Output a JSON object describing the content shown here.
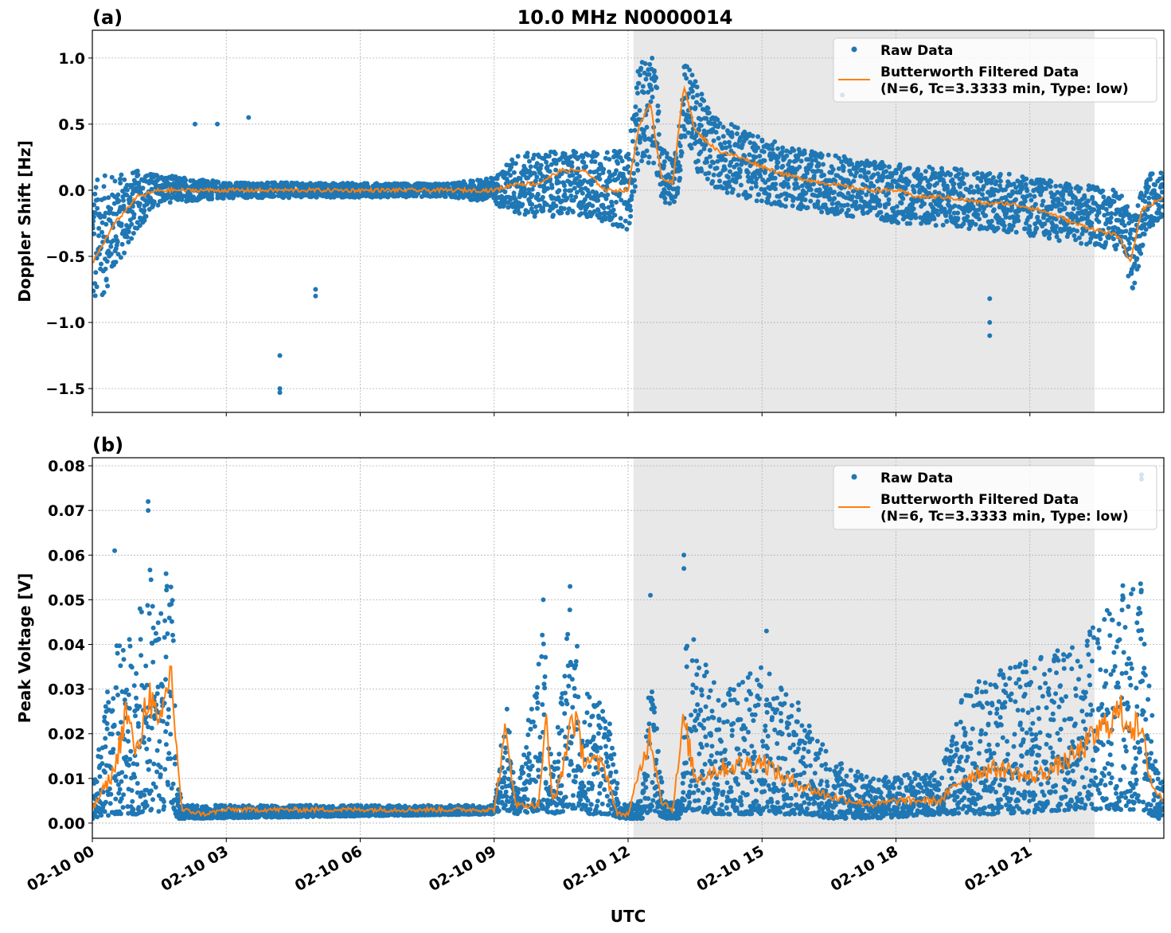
{
  "title": "10.0 MHz N0000014",
  "colors": {
    "raw": "#1f77b4",
    "filtered": "#ff7f0e",
    "shade": "#e8e8e8",
    "grid": "#b0b0b0"
  },
  "xaxis": {
    "label": "UTC",
    "range_hours": [
      0,
      24
    ],
    "ticks": [
      {
        "hour": 0,
        "label": "02-10 00"
      },
      {
        "hour": 3,
        "label": "02-10 03"
      },
      {
        "hour": 6,
        "label": "02-10 06"
      },
      {
        "hour": 9,
        "label": "02-10 09"
      },
      {
        "hour": 12,
        "label": "02-10 12"
      },
      {
        "hour": 15,
        "label": "02-10 15"
      },
      {
        "hour": 18,
        "label": "02-10 18"
      },
      {
        "hour": 21,
        "label": "02-10 21"
      }
    ]
  },
  "chart_data": [
    {
      "type": "scatter",
      "panel_label": "(a)",
      "ylabel": "Doppler Shift [Hz]",
      "ylim": [
        -1.68,
        1.21
      ],
      "yticks": [
        {
          "v": 1.0,
          "label": "1.0"
        },
        {
          "v": 0.5,
          "label": "0.5"
        },
        {
          "v": 0.0,
          "label": "0.0"
        },
        {
          "v": -0.5,
          "label": "−0.5"
        },
        {
          "v": -1.0,
          "label": "−1.0"
        },
        {
          "v": -1.5,
          "label": "−1.5"
        }
      ],
      "grid": true,
      "shaded_span_hours": [
        12.12,
        22.45
      ],
      "legend": {
        "placement": "top-right",
        "entries": [
          "Raw Data",
          "Butterworth Filtered Data",
          "(N=6, Tc=3.3333 min, Type: low)"
        ]
      },
      "raw_envelope": [
        [
          0,
          -0.95,
          0.1
        ],
        [
          1,
          -0.3,
          0.15
        ],
        [
          1.5,
          -0.1,
          0.12
        ],
        [
          3,
          -0.06,
          0.06
        ],
        [
          8,
          -0.05,
          0.05
        ],
        [
          9,
          -0.1,
          0.1
        ],
        [
          9.5,
          -0.2,
          0.28
        ],
        [
          11,
          -0.2,
          0.3
        ],
        [
          12,
          -0.3,
          0.3
        ],
        [
          12.25,
          0.2,
          1.0
        ],
        [
          12.6,
          0.2,
          1.0
        ],
        [
          12.75,
          -0.1,
          0.3
        ],
        [
          13.1,
          -0.1,
          0.3
        ],
        [
          13.25,
          0.4,
          1.05
        ],
        [
          13.6,
          0.1,
          0.75
        ],
        [
          14,
          0.0,
          0.55
        ],
        [
          15,
          -0.1,
          0.4
        ],
        [
          16,
          -0.15,
          0.3
        ],
        [
          18,
          -0.25,
          0.2
        ],
        [
          20,
          -0.3,
          0.15
        ],
        [
          22,
          -0.4,
          0.05
        ],
        [
          23,
          -0.45,
          0.0
        ],
        [
          23.3,
          -0.8,
          -0.2
        ],
        [
          23.6,
          -0.3,
          0.1
        ],
        [
          24,
          -0.2,
          0.2
        ]
      ],
      "raw_outliers": [
        [
          4.2,
          -1.25
        ],
        [
          4.2,
          -1.5
        ],
        [
          4.2,
          -1.53
        ],
        [
          5.0,
          -0.75
        ],
        [
          5.0,
          -0.8
        ],
        [
          20.1,
          -1.0
        ],
        [
          20.1,
          -1.1
        ],
        [
          20.1,
          -0.82
        ],
        [
          2.8,
          0.5
        ],
        [
          3.5,
          0.55
        ],
        [
          2.3,
          0.5
        ],
        [
          16.8,
          0.72
        ]
      ],
      "filtered": [
        [
          0,
          -0.55
        ],
        [
          0.5,
          -0.25
        ],
        [
          1,
          -0.05
        ],
        [
          1.5,
          0.0
        ],
        [
          3,
          0.0
        ],
        [
          9,
          0.0
        ],
        [
          9.5,
          0.05
        ],
        [
          10,
          0.05
        ],
        [
          10.5,
          0.15
        ],
        [
          11,
          0.15
        ],
        [
          11.5,
          0.0
        ],
        [
          12,
          0.0
        ],
        [
          12.25,
          0.5
        ],
        [
          12.5,
          0.65
        ],
        [
          12.75,
          0.1
        ],
        [
          13,
          0.05
        ],
        [
          13.25,
          0.8
        ],
        [
          13.5,
          0.45
        ],
        [
          14,
          0.3
        ],
        [
          14.5,
          0.25
        ],
        [
          15,
          0.18
        ],
        [
          15.5,
          0.12
        ],
        [
          16,
          0.08
        ],
        [
          16.5,
          0.05
        ],
        [
          17,
          0.02
        ],
        [
          17.5,
          0.0
        ],
        [
          18,
          0.0
        ],
        [
          18.5,
          -0.05
        ],
        [
          19,
          -0.05
        ],
        [
          19.5,
          -0.07
        ],
        [
          20,
          -0.1
        ],
        [
          20.5,
          -0.1
        ],
        [
          21,
          -0.13
        ],
        [
          21.5,
          -0.18
        ],
        [
          22,
          -0.25
        ],
        [
          22.5,
          -0.3
        ],
        [
          23,
          -0.35
        ],
        [
          23.25,
          -0.55
        ],
        [
          23.5,
          -0.15
        ],
        [
          24,
          -0.05
        ]
      ]
    },
    {
      "type": "scatter",
      "panel_label": "(b)",
      "ylabel": "Peak Voltage [V]",
      "ylim": [
        -0.0034,
        0.0818
      ],
      "yticks": [
        {
          "v": 0.08,
          "label": "0.08"
        },
        {
          "v": 0.07,
          "label": "0.07"
        },
        {
          "v": 0.06,
          "label": "0.06"
        },
        {
          "v": 0.05,
          "label": "0.05"
        },
        {
          "v": 0.04,
          "label": "0.04"
        },
        {
          "v": 0.03,
          "label": "0.03"
        },
        {
          "v": 0.02,
          "label": "0.02"
        },
        {
          "v": 0.01,
          "label": "0.01"
        },
        {
          "v": 0.0,
          "label": "0.00"
        }
      ],
      "grid": true,
      "shaded_span_hours": [
        12.12,
        22.45
      ],
      "legend": {
        "placement": "top-right",
        "entries": [
          "Raw Data",
          "Butterworth Filtered Data",
          "(N=6, Tc=3.3333 min, Type: low)"
        ]
      },
      "raw_envelope": [
        [
          0,
          0.001,
          0.008
        ],
        [
          0.5,
          0.002,
          0.04
        ],
        [
          1,
          0.002,
          0.045
        ],
        [
          1.25,
          0.003,
          0.06
        ],
        [
          1.5,
          0.002,
          0.05
        ],
        [
          1.75,
          0.005,
          0.065
        ],
        [
          1.9,
          0.001,
          0.01
        ],
        [
          2,
          0.001,
          0.004
        ],
        [
          9,
          0.002,
          0.004
        ],
        [
          9.25,
          0.003,
          0.03
        ],
        [
          9.5,
          0.002,
          0.006
        ],
        [
          10.1,
          0.003,
          0.045
        ],
        [
          10.3,
          0.002,
          0.01
        ],
        [
          10.7,
          0.003,
          0.05
        ],
        [
          11,
          0.002,
          0.03
        ],
        [
          11.6,
          0.002,
          0.025
        ],
        [
          11.8,
          0.001,
          0.004
        ],
        [
          12.3,
          0.001,
          0.005
        ],
        [
          12.5,
          0.003,
          0.035
        ],
        [
          12.8,
          0.001,
          0.005
        ],
        [
          13.2,
          0.001,
          0.005
        ],
        [
          13.3,
          0.003,
          0.045
        ],
        [
          14,
          0.002,
          0.03
        ],
        [
          15,
          0.002,
          0.035
        ],
        [
          16,
          0.002,
          0.025
        ],
        [
          16.5,
          0.001,
          0.015
        ],
        [
          17.5,
          0.001,
          0.01
        ],
        [
          19,
          0.002,
          0.012
        ],
        [
          19.5,
          0.002,
          0.03
        ],
        [
          20.5,
          0.002,
          0.035
        ],
        [
          22,
          0.003,
          0.04
        ],
        [
          22.8,
          0.003,
          0.05
        ],
        [
          23.5,
          0.003,
          0.06
        ],
        [
          23.8,
          0.001,
          0.015
        ],
        [
          24,
          0.001,
          0.01
        ]
      ],
      "raw_outliers": [
        [
          1.25,
          0.072
        ],
        [
          1.25,
          0.07
        ],
        [
          12.5,
          0.051
        ],
        [
          13.25,
          0.06
        ],
        [
          13.25,
          0.057
        ],
        [
          23.5,
          0.078
        ],
        [
          23.5,
          0.077
        ],
        [
          0.5,
          0.061
        ],
        [
          10.7,
          0.053
        ],
        [
          10.1,
          0.05
        ],
        [
          15.1,
          0.043
        ]
      ],
      "filtered": [
        [
          0,
          0.003
        ],
        [
          0.5,
          0.012
        ],
        [
          0.75,
          0.025
        ],
        [
          1,
          0.015
        ],
        [
          1.25,
          0.03
        ],
        [
          1.5,
          0.02
        ],
        [
          1.75,
          0.035
        ],
        [
          2,
          0.003
        ],
        [
          2.5,
          0.002
        ],
        [
          3,
          0.003
        ],
        [
          9,
          0.003
        ],
        [
          9.25,
          0.02
        ],
        [
          9.5,
          0.004
        ],
        [
          10,
          0.004
        ],
        [
          10.15,
          0.024
        ],
        [
          10.3,
          0.005
        ],
        [
          10.5,
          0.01
        ],
        [
          10.75,
          0.025
        ],
        [
          11,
          0.015
        ],
        [
          11.5,
          0.012
        ],
        [
          11.75,
          0.002
        ],
        [
          12,
          0.002
        ],
        [
          12.5,
          0.02
        ],
        [
          12.75,
          0.005
        ],
        [
          13,
          0.003
        ],
        [
          13.25,
          0.023
        ],
        [
          13.5,
          0.01
        ],
        [
          14,
          0.012
        ],
        [
          15,
          0.014
        ],
        [
          15.5,
          0.01
        ],
        [
          16,
          0.008
        ],
        [
          16.5,
          0.006
        ],
        [
          17,
          0.005
        ],
        [
          17.5,
          0.004
        ],
        [
          18,
          0.005
        ],
        [
          19,
          0.005
        ],
        [
          19.5,
          0.01
        ],
        [
          20,
          0.012
        ],
        [
          20.5,
          0.012
        ],
        [
          21,
          0.01
        ],
        [
          21.5,
          0.012
        ],
        [
          22,
          0.015
        ],
        [
          22.5,
          0.02
        ],
        [
          23,
          0.025
        ],
        [
          23.5,
          0.02
        ],
        [
          23.75,
          0.008
        ],
        [
          24,
          0.005
        ]
      ]
    }
  ]
}
